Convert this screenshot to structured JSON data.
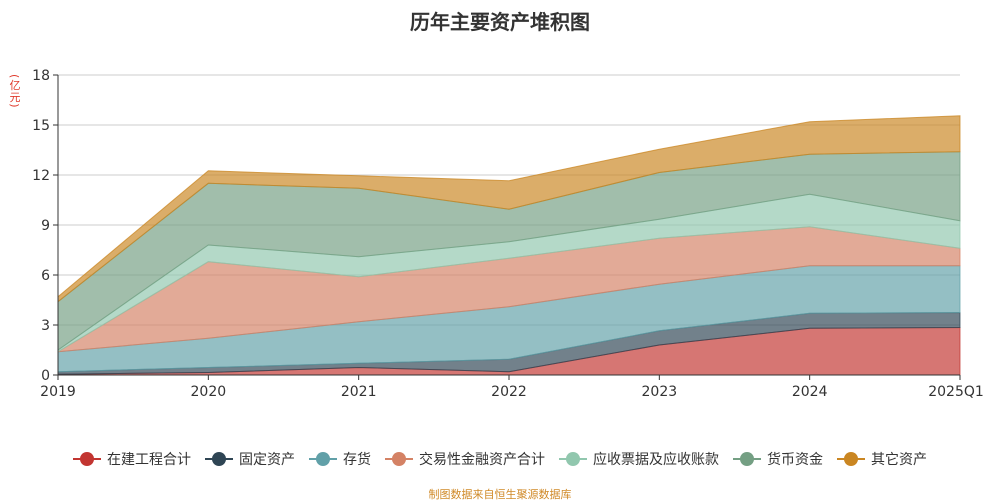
{
  "chart_data": {
    "type": "area",
    "stacked": true,
    "title": "历年主要资产堆积图",
    "y_unit": "(亿元)",
    "ylim": [
      0,
      18
    ],
    "yticks": [
      0,
      3,
      6,
      9,
      12,
      15,
      18
    ],
    "grid": true,
    "legend_position": "bottom",
    "categories": [
      "2019",
      "2020",
      "2021",
      "2022",
      "2023",
      "2024",
      "2025Q1"
    ],
    "series": [
      {
        "name": "在建工程合计",
        "color": "#c23531",
        "values": [
          0.05,
          0.15,
          0.45,
          0.2,
          1.8,
          2.8,
          2.85
        ]
      },
      {
        "name": "固定资产",
        "color": "#2f4554",
        "values": [
          0.15,
          0.3,
          0.25,
          0.75,
          0.85,
          0.9,
          0.9
        ]
      },
      {
        "name": "存货",
        "color": "#61a0a8",
        "values": [
          1.2,
          1.75,
          2.5,
          3.15,
          2.8,
          2.85,
          2.8
        ]
      },
      {
        "name": "交易性金融资产合计",
        "color": "#d48265",
        "values": [
          0.0,
          4.6,
          2.7,
          2.9,
          2.75,
          2.35,
          1.05
        ]
      },
      {
        "name": "应收票据及应收账款",
        "color": "#91c7ae",
        "values": [
          0.1,
          1.0,
          1.2,
          1.0,
          1.15,
          1.95,
          1.65
        ]
      },
      {
        "name": "货币资金",
        "color": "#749f83",
        "values": [
          2.9,
          3.7,
          4.1,
          1.95,
          2.8,
          2.4,
          4.15
        ]
      },
      {
        "name": "其它资产",
        "color": "#ca8622",
        "values": [
          0.3,
          0.75,
          0.75,
          1.7,
          1.4,
          1.95,
          2.15
        ]
      }
    ]
  },
  "source_note": "制图数据来自恒生聚源数据库"
}
